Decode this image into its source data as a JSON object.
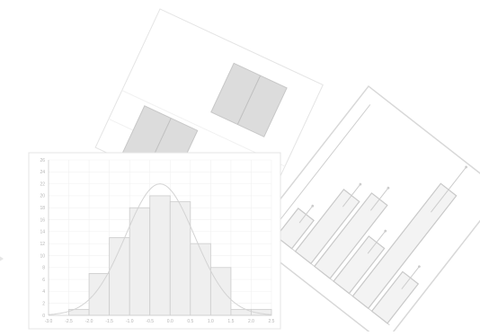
{
  "colors": {
    "background": "#ffffff",
    "card_border": "#e4e4e4",
    "bar_fill": "#efefef",
    "bar_stroke": "#cccccc",
    "curve": "#d3d3d3",
    "box_fill": "#dcdcdc",
    "grid": "#f1f1f1"
  },
  "chart_data": [
    {
      "type": "bar",
      "chart": "histogram",
      "x_ticks": [
        "-3.0",
        "-2.5",
        "-2.0",
        "-1.5",
        "-1.0",
        "-0.5",
        "0.0",
        "0.5",
        "1.0",
        "1.5",
        "2.0",
        "2.5"
      ],
      "y_ticks": [
        "0",
        "2",
        "4",
        "6",
        "8",
        "10",
        "12",
        "14",
        "16",
        "18",
        "20",
        "22",
        "24",
        "26"
      ],
      "bins": [
        {
          "from": -2.5,
          "to": -2.0,
          "count": 1
        },
        {
          "from": -2.0,
          "to": -1.5,
          "count": 7
        },
        {
          "from": -1.5,
          "to": -1.0,
          "count": 13
        },
        {
          "from": -1.0,
          "to": -0.5,
          "count": 18
        },
        {
          "from": -0.5,
          "to": 0.0,
          "count": 20
        },
        {
          "from": 0.0,
          "to": 0.5,
          "count": 19
        },
        {
          "from": 0.5,
          "to": 1.0,
          "count": 12
        },
        {
          "from": 1.0,
          "to": 1.5,
          "count": 8
        },
        {
          "from": 1.5,
          "to": 2.0,
          "count": 1
        },
        {
          "from": 2.0,
          "to": 2.5,
          "count": 1
        }
      ],
      "overlay": "normal-curve",
      "xlim": [
        -3.0,
        2.5
      ],
      "ylim": [
        0,
        26
      ],
      "grid": true
    },
    {
      "type": "bar",
      "chart": "bar-with-error-bars",
      "values": [
        5,
        11,
        13,
        8,
        20,
        7
      ],
      "errors": [
        1.5,
        2,
        2,
        2,
        4,
        2
      ],
      "ylim": [
        0,
        22
      ],
      "rotation": "tilted"
    },
    {
      "type": "box",
      "chart": "box-plot",
      "boxes": [
        {
          "q1": 0.0,
          "median": 1.7,
          "q3": 3.6
        },
        {
          "q1": 2.0,
          "median": 3.5,
          "q3": 5.0
        }
      ],
      "rotation": "tilted"
    }
  ]
}
